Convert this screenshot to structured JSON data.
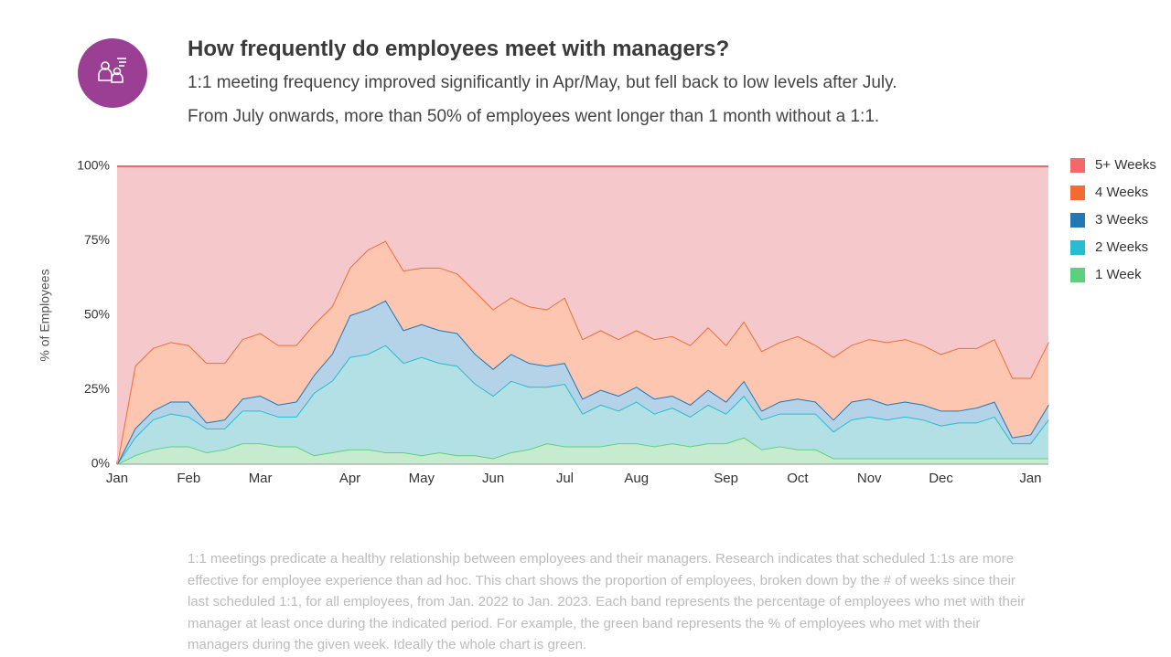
{
  "chart_data": {
    "type": "stacked-area",
    "title": "How frequently do employees meet with managers?",
    "subtitle": [
      "1:1 meeting frequency improved significantly in Apr/May, but fell back to low levels after July.",
      "From July onwards, more than 50% of employees went longer than 1 month without a 1:1."
    ],
    "y_label": "% of Employees",
    "categories": [
      "Jan",
      null,
      null,
      null,
      "Feb",
      null,
      null,
      null,
      "Mar",
      null,
      null,
      null,
      null,
      "Apr",
      null,
      null,
      null,
      "May",
      null,
      null,
      null,
      "Jun",
      null,
      null,
      null,
      "Jul",
      null,
      null,
      null,
      "Aug",
      null,
      null,
      null,
      null,
      "Sep",
      null,
      null,
      null,
      "Oct",
      null,
      null,
      null,
      "Nov",
      null,
      null,
      null,
      "Dec",
      null,
      null,
      null,
      null,
      "Jan",
      null
    ],
    "ylim": [
      0,
      100
    ],
    "yticks": [
      {
        "value": 0,
        "label": "0%"
      },
      {
        "value": 25,
        "label": "25%"
      },
      {
        "value": 50,
        "label": "50%"
      },
      {
        "value": 75,
        "label": "75%"
      },
      {
        "value": 100,
        "label": "100%"
      }
    ],
    "grid": true,
    "legend": "right",
    "series": [
      {
        "name": "5+ Weeks",
        "color": "#f06a6a",
        "fill": "#f5c9cc",
        "values": [
          100,
          67,
          61,
          59,
          60,
          66,
          66,
          58,
          56,
          60,
          60,
          53,
          47,
          34,
          28,
          25,
          35,
          34,
          34,
          36,
          42,
          48,
          44,
          47,
          48,
          44,
          58,
          55,
          58,
          55,
          58,
          57,
          60,
          54,
          60,
          52,
          62,
          59,
          57,
          60,
          64,
          60,
          58,
          59,
          58,
          60,
          63,
          61,
          61,
          58,
          71,
          71,
          59
        ]
      },
      {
        "name": "4 Weeks",
        "color": "#f26b35",
        "fill": "#fcc6b1",
        "values": [
          0,
          21,
          21,
          20,
          19,
          20,
          19,
          20,
          21,
          20,
          19,
          17,
          16,
          16,
          20,
          20,
          20,
          19,
          21,
          20,
          21,
          20,
          19,
          19,
          19,
          22,
          20,
          20,
          19,
          19,
          20,
          20,
          20,
          21,
          19,
          20,
          20,
          20,
          21,
          19,
          21,
          19,
          20,
          21,
          21,
          20,
          19,
          21,
          20,
          21,
          20,
          19,
          21
        ]
      },
      {
        "name": "3 Weeks",
        "color": "#2278b5",
        "fill": "#b4d2e8",
        "values": [
          0,
          3,
          3,
          4,
          5,
          2,
          3,
          4,
          5,
          4,
          5,
          6,
          9,
          14,
          15,
          15,
          11,
          11,
          11,
          11,
          10,
          9,
          9,
          8,
          7,
          7,
          5,
          5,
          5,
          5,
          5,
          4,
          4,
          5,
          4,
          5,
          3,
          4,
          5,
          4,
          4,
          6,
          6,
          5,
          5,
          5,
          5,
          4,
          5,
          5,
          2,
          3,
          5
        ]
      },
      {
        "name": "2 Weeks",
        "color": "#27bccf",
        "fill": "#b3e0e5",
        "values": [
          0,
          6,
          10,
          11,
          10,
          8,
          7,
          11,
          11,
          10,
          10,
          21,
          24,
          31,
          32,
          36,
          30,
          33,
          30,
          30,
          24,
          21,
          24,
          21,
          19,
          21,
          11,
          14,
          11,
          14,
          11,
          12,
          10,
          13,
          10,
          14,
          10,
          11,
          12,
          12,
          9,
          13,
          14,
          13,
          14,
          13,
          11,
          12,
          12,
          14,
          5,
          5,
          13
        ]
      },
      {
        "name": "1 Week",
        "color": "#5dd07d",
        "fill": "#c6ebcf",
        "values": [
          0,
          3,
          5,
          6,
          6,
          4,
          5,
          7,
          7,
          6,
          6,
          3,
          4,
          5,
          5,
          4,
          4,
          3,
          4,
          3,
          3,
          2,
          4,
          5,
          7,
          6,
          6,
          6,
          7,
          7,
          6,
          7,
          6,
          7,
          7,
          9,
          5,
          6,
          5,
          5,
          2,
          2,
          2,
          2,
          2,
          2,
          2,
          2,
          2,
          2,
          2,
          2,
          2
        ]
      }
    ]
  },
  "description": "1:1 meetings predicate a healthy relationship between employees and their managers. Research indicates that scheduled 1:1s are more effective for employee experience than ad hoc. This chart shows the proportion of employees, broken down by the # of weeks since their last scheduled 1:1, for all employees, from Jan. 2022 to Jan. 2023. Each band represents the percentage of employees who met with their manager at least once during the indicated period. For example, the green band represents the % of employees who met with their managers during the given week. Ideally the whole chart is green."
}
